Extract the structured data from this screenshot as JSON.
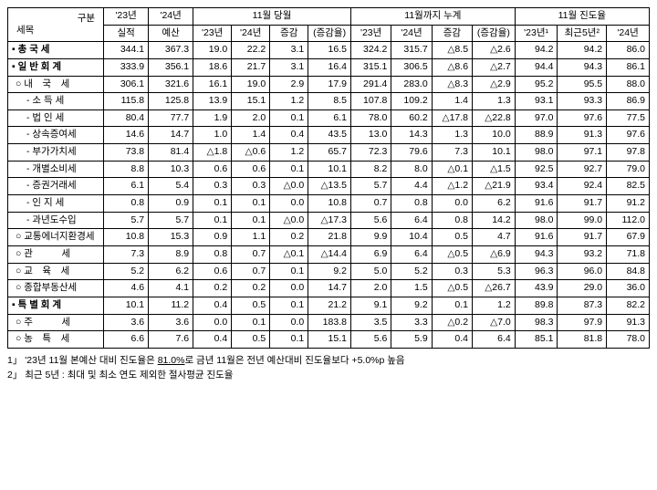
{
  "headers": {
    "topLeft1": "구분",
    "topLeft2": "세목",
    "y23": "'23년",
    "y24": "'24년",
    "actual": "실적",
    "budget": "예산",
    "g1": "11월 당월",
    "g2": "11월까지 누계",
    "g3": "11월 진도율",
    "h23": "'23년",
    "h24": "'24년",
    "diff": "증감",
    "rate": "(증감율)",
    "p23": "'23년¹",
    "p5y": "최근5년²",
    "p24": "'24년"
  },
  "rows": [
    {
      "label": "▪ 총 국 세",
      "cls": "bold",
      "vals": [
        "344.1",
        "367.3",
        "19.0",
        "22.2",
        "3.1",
        "16.5",
        "324.2",
        "315.7",
        "△8.5",
        "△2.6",
        "94.2",
        "94.2",
        "86.0"
      ]
    },
    {
      "label": "▪ 일 반 회 계",
      "cls": "bold",
      "vals": [
        "333.9",
        "356.1",
        "18.6",
        "21.7",
        "3.1",
        "16.4",
        "315.1",
        "306.5",
        "△8.6",
        "△2.7",
        "94.4",
        "94.3",
        "86.1"
      ]
    },
    {
      "label": "○ 내　국　세",
      "cls": "indent1",
      "vals": [
        "306.1",
        "321.6",
        "16.1",
        "19.0",
        "2.9",
        "17.9",
        "291.4",
        "283.0",
        "△8.3",
        "△2.9",
        "95.2",
        "95.5",
        "88.0"
      ]
    },
    {
      "label": "- 소 득 세",
      "cls": "indent2",
      "vals": [
        "115.8",
        "125.8",
        "13.9",
        "15.1",
        "1.2",
        "8.5",
        "107.8",
        "109.2",
        "1.4",
        "1.3",
        "93.1",
        "93.3",
        "86.9"
      ]
    },
    {
      "label": "- 법 인 세",
      "cls": "indent2",
      "vals": [
        "80.4",
        "77.7",
        "1.9",
        "2.0",
        "0.1",
        "6.1",
        "78.0",
        "60.2",
        "△17.8",
        "△22.8",
        "97.0",
        "97.6",
        "77.5"
      ]
    },
    {
      "label": "- 상속증여세",
      "cls": "indent2",
      "vals": [
        "14.6",
        "14.7",
        "1.0",
        "1.4",
        "0.4",
        "43.5",
        "13.0",
        "14.3",
        "1.3",
        "10.0",
        "88.9",
        "91.3",
        "97.6"
      ]
    },
    {
      "label": "- 부가가치세",
      "cls": "indent2",
      "vals": [
        "73.8",
        "81.4",
        "△1.8",
        "△0.6",
        "1.2",
        "65.7",
        "72.3",
        "79.6",
        "7.3",
        "10.1",
        "98.0",
        "97.1",
        "97.8"
      ]
    },
    {
      "label": "- 개별소비세",
      "cls": "indent2",
      "vals": [
        "8.8",
        "10.3",
        "0.6",
        "0.6",
        "0.1",
        "10.1",
        "8.2",
        "8.0",
        "△0.1",
        "△1.5",
        "92.5",
        "92.7",
        "79.0"
      ]
    },
    {
      "label": "- 증권거래세",
      "cls": "indent2",
      "vals": [
        "6.1",
        "5.4",
        "0.3",
        "0.3",
        "△0.0",
        "△13.5",
        "5.7",
        "4.4",
        "△1.2",
        "△21.9",
        "93.4",
        "92.4",
        "82.5"
      ]
    },
    {
      "label": "- 인 지 세",
      "cls": "indent2",
      "vals": [
        "0.8",
        "0.9",
        "0.1",
        "0.1",
        "0.0",
        "10.8",
        "0.7",
        "0.8",
        "0.0",
        "6.2",
        "91.6",
        "91.7",
        "91.2"
      ]
    },
    {
      "label": "- 과년도수입",
      "cls": "indent2",
      "vals": [
        "5.7",
        "5.7",
        "0.1",
        "0.1",
        "△0.0",
        "△17.3",
        "5.6",
        "6.4",
        "0.8",
        "14.2",
        "98.0",
        "99.0",
        "112.0"
      ]
    },
    {
      "label": "○ 교통에너지환경세",
      "cls": "indent1",
      "vals": [
        "10.8",
        "15.3",
        "0.9",
        "1.1",
        "0.2",
        "21.8",
        "9.9",
        "10.4",
        "0.5",
        "4.7",
        "91.6",
        "91.7",
        "67.9"
      ]
    },
    {
      "label": "○ 관　　　세",
      "cls": "indent1",
      "vals": [
        "7.3",
        "8.9",
        "0.8",
        "0.7",
        "△0.1",
        "△14.4",
        "6.9",
        "6.4",
        "△0.5",
        "△6.9",
        "94.3",
        "93.2",
        "71.8"
      ]
    },
    {
      "label": "○ 교　육　세",
      "cls": "indent1",
      "vals": [
        "5.2",
        "6.2",
        "0.6",
        "0.7",
        "0.1",
        "9.2",
        "5.0",
        "5.2",
        "0.3",
        "5.3",
        "96.3",
        "96.0",
        "84.8"
      ]
    },
    {
      "label": "○ 종합부동산세",
      "cls": "indent1",
      "vals": [
        "4.6",
        "4.1",
        "0.2",
        "0.2",
        "0.0",
        "14.7",
        "2.0",
        "1.5",
        "△0.5",
        "△26.7",
        "43.9",
        "29.0",
        "36.0"
      ]
    },
    {
      "label": "▪ 특 별 회 계",
      "cls": "bold",
      "vals": [
        "10.1",
        "11.2",
        "0.4",
        "0.5",
        "0.1",
        "21.2",
        "9.1",
        "9.2",
        "0.1",
        "1.2",
        "89.8",
        "87.3",
        "82.2"
      ]
    },
    {
      "label": "○ 주　　　세",
      "cls": "indent1",
      "vals": [
        "3.6",
        "3.6",
        "0.0",
        "0.1",
        "0.0",
        "183.8",
        "3.5",
        "3.3",
        "△0.2",
        "△7.0",
        "98.3",
        "97.9",
        "91.3"
      ]
    },
    {
      "label": "○ 농　특　세",
      "cls": "indent1",
      "vals": [
        "6.6",
        "7.6",
        "0.4",
        "0.5",
        "0.1",
        "15.1",
        "5.6",
        "5.9",
        "0.4",
        "6.4",
        "85.1",
        "81.8",
        "78.0"
      ]
    }
  ],
  "footnotes": {
    "f1a": "1」 '23년 11월 본예산 대비 진도율은 ",
    "f1b": "81.0%",
    "f1c": "로 금년 11월은 전년 예산대비 진도율보다 +5.0%p 높음",
    "f2": "2」 최근 5년 : 최대 및 최소 연도 제외한 절사평균 진도율"
  }
}
